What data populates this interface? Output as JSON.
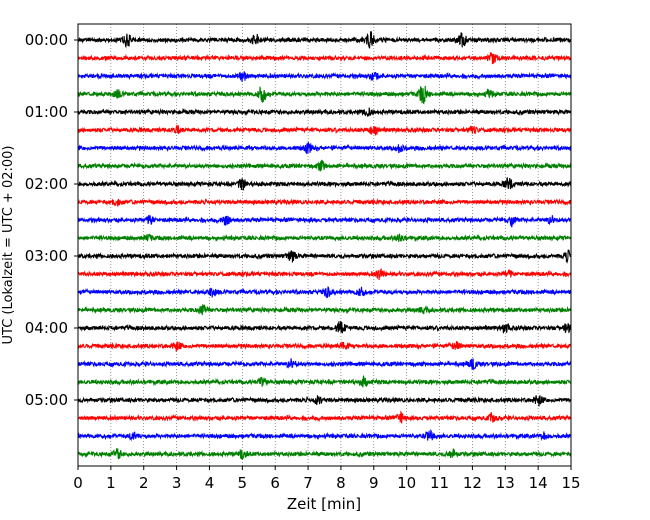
{
  "chart_data": {
    "type": "line",
    "xlabel": "Zeit  [min]",
    "ylabel": "UTC (Lokalzeit = UTC + 02:00)",
    "xlim": [
      0,
      15
    ],
    "x_ticks": [
      "0",
      "1",
      "2",
      "3",
      "4",
      "5",
      "6",
      "7",
      "8",
      "9",
      "10",
      "11",
      "12",
      "13",
      "14",
      "15"
    ],
    "y_ticks": [
      "00:00",
      "01:00",
      "02:00",
      "03:00",
      "04:00",
      "05:00"
    ],
    "trace_count": 24,
    "trace_interval_min": 15,
    "colors": [
      "#000000",
      "#ff0000",
      "#0000ff",
      "#008000"
    ],
    "grid": "vertical dotted",
    "bursts": [
      [
        [
          1.5,
          0.7
        ],
        [
          5.4,
          0.6
        ],
        [
          8.9,
          0.8
        ],
        [
          11.7,
          0.7
        ]
      ],
      [
        [
          12.6,
          0.5
        ]
      ],
      [
        [
          5.0,
          0.5
        ],
        [
          9.0,
          0.5
        ]
      ],
      [
        [
          1.2,
          0.4
        ],
        [
          5.6,
          0.8
        ],
        [
          10.5,
          0.9
        ],
        [
          12.5,
          0.4
        ]
      ],
      [
        [
          8.8,
          0.4
        ]
      ],
      [
        [
          3.0,
          0.4
        ],
        [
          9.0,
          0.5
        ],
        [
          12.0,
          0.4
        ]
      ],
      [
        [
          7.0,
          0.5
        ],
        [
          9.8,
          0.4
        ]
      ],
      [
        [
          7.4,
          0.5
        ]
      ],
      [
        [
          5.0,
          0.6
        ],
        [
          13.1,
          0.6
        ]
      ],
      [
        [
          1.2,
          0.3
        ]
      ],
      [
        [
          2.2,
          0.5
        ],
        [
          4.5,
          0.5
        ],
        [
          13.2,
          0.6
        ],
        [
          14.4,
          0.4
        ]
      ],
      [
        [
          2.1,
          0.4
        ],
        [
          9.8,
          0.3
        ]
      ],
      [
        [
          6.5,
          0.5
        ],
        [
          14.9,
          0.5
        ]
      ],
      [
        [
          9.2,
          0.5
        ],
        [
          13.1,
          0.4
        ]
      ],
      [
        [
          4.1,
          0.4
        ],
        [
          7.6,
          0.5
        ],
        [
          8.6,
          0.4
        ]
      ],
      [
        [
          3.8,
          0.5
        ],
        [
          10.5,
          0.3
        ]
      ],
      [
        [
          8.0,
          0.8
        ],
        [
          13.0,
          0.5
        ],
        [
          14.9,
          0.5
        ]
      ],
      [
        [
          3.0,
          0.4
        ],
        [
          8.1,
          0.4
        ],
        [
          11.5,
          0.4
        ]
      ],
      [
        [
          6.5,
          0.5
        ],
        [
          12.0,
          0.5
        ]
      ],
      [
        [
          5.6,
          0.4
        ],
        [
          8.7,
          0.4
        ]
      ],
      [
        [
          7.3,
          0.4
        ],
        [
          14.0,
          0.5
        ]
      ],
      [
        [
          9.8,
          0.5
        ],
        [
          12.6,
          0.4
        ]
      ],
      [
        [
          1.7,
          0.4
        ],
        [
          10.7,
          0.5
        ],
        [
          14.2,
          0.3
        ]
      ],
      [
        [
          1.2,
          0.5
        ],
        [
          5.0,
          0.4
        ],
        [
          11.4,
          0.4
        ]
      ]
    ]
  }
}
